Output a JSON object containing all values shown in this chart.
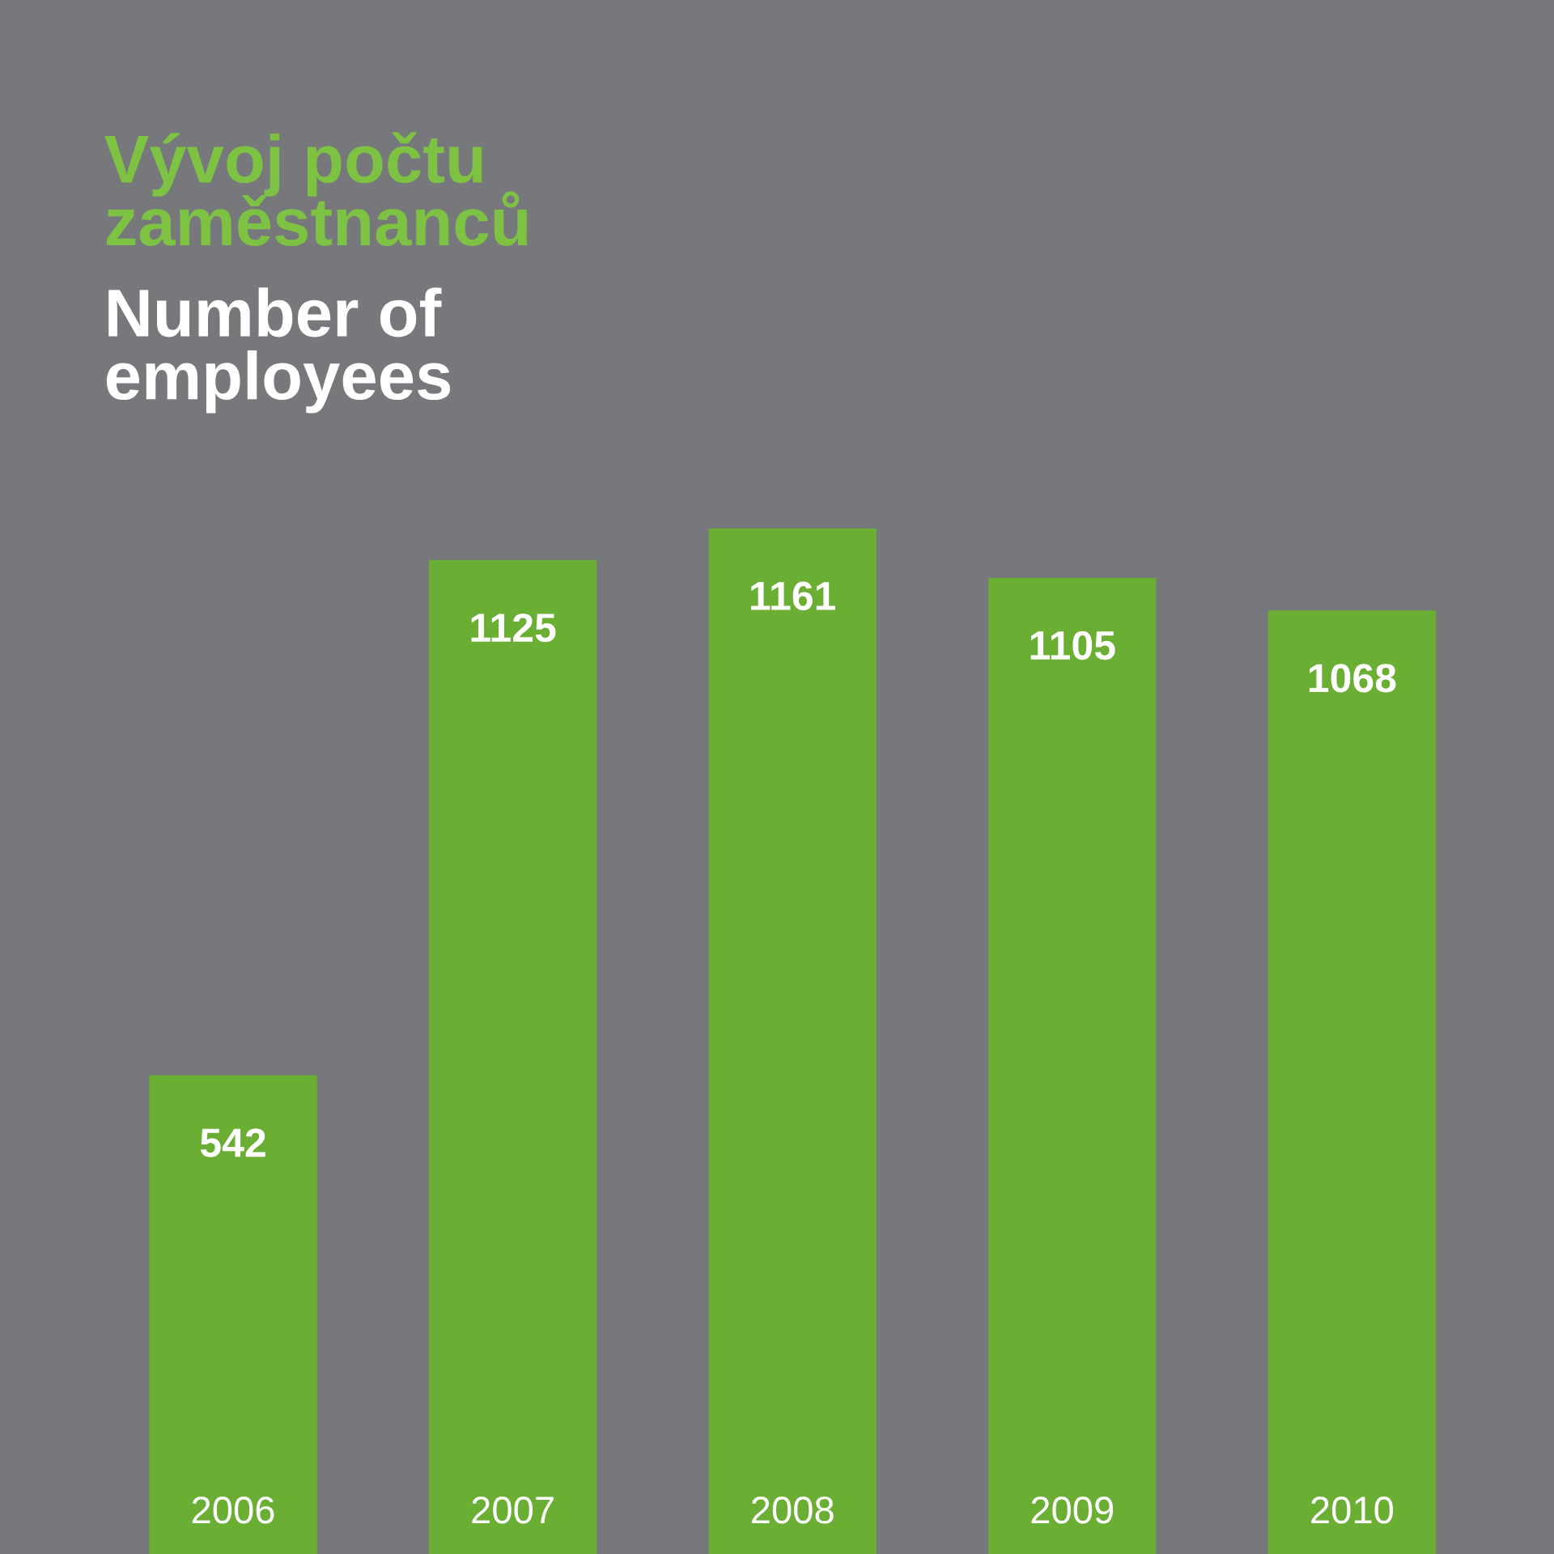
{
  "chart_data": {
    "type": "bar",
    "title": "Vývoj počtu zaměstnanců",
    "subtitle": "Number of employees",
    "categories": [
      "2006",
      "2007",
      "2008",
      "2009",
      "2010"
    ],
    "values": [
      542,
      1125,
      1161,
      1105,
      1068
    ],
    "color": "#6aae34",
    "data_labels": true,
    "tick_labels": "x"
  }
}
